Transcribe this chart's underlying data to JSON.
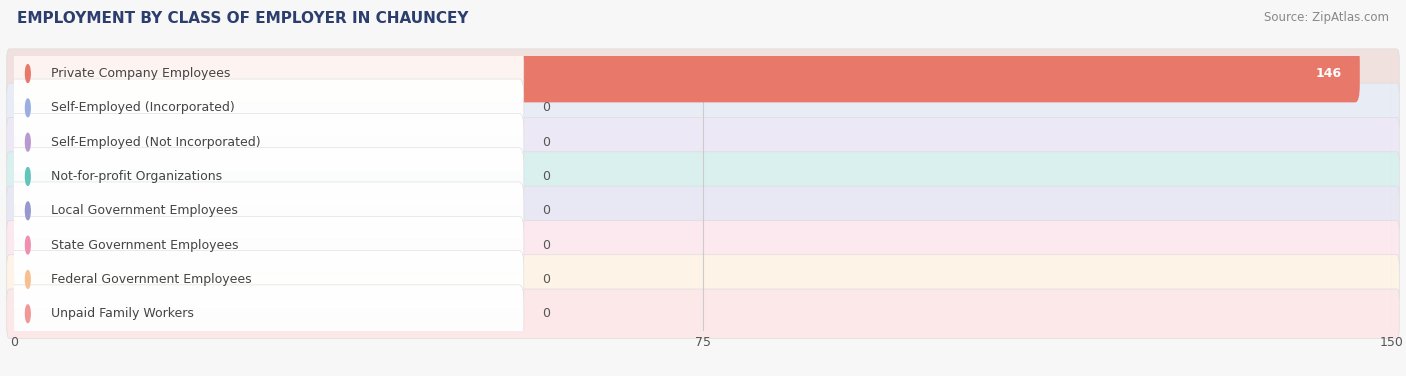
{
  "title": "EMPLOYMENT BY CLASS OF EMPLOYER IN CHAUNCEY",
  "source": "Source: ZipAtlas.com",
  "categories": [
    "Private Company Employees",
    "Self-Employed (Incorporated)",
    "Self-Employed (Not Incorporated)",
    "Not-for-profit Organizations",
    "Local Government Employees",
    "State Government Employees",
    "Federal Government Employees",
    "Unpaid Family Workers"
  ],
  "values": [
    146,
    0,
    0,
    0,
    0,
    0,
    0,
    0
  ],
  "bar_colors": [
    "#e8796a",
    "#9aafe0",
    "#b89ad0",
    "#62c4bc",
    "#9898d0",
    "#f090b0",
    "#f8c090",
    "#f09898"
  ],
  "row_bg_colors": [
    "#f0e0de",
    "#e8ecf5",
    "#ede8f5",
    "#daf0ee",
    "#e8e8f5",
    "#fce8ef",
    "#fdf3e6",
    "#fce8e8"
  ],
  "xlim": [
    0,
    150
  ],
  "xticks": [
    0,
    75,
    150
  ],
  "background_color": "#f7f7f7",
  "title_fontsize": 11,
  "source_fontsize": 8.5,
  "label_fontsize": 9,
  "value_fontsize": 9
}
